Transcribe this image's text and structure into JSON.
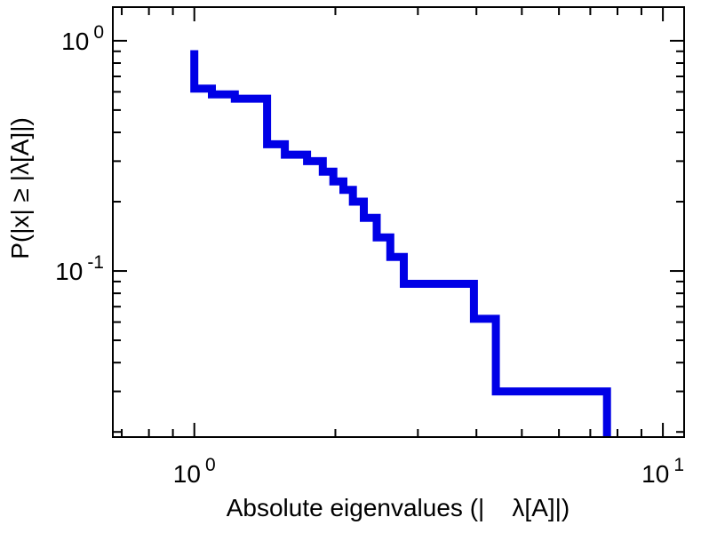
{
  "chart_data": {
    "type": "line",
    "subtype": "empirical-ccdf-step",
    "title": "",
    "xlabel": "Absolute eigenvalues (|    λ[A]|)",
    "ylabel": "P(|x| ≥ |λ[A]|)",
    "x_scale": "log",
    "y_scale": "log",
    "xlim": [
      0.67,
      11.1
    ],
    "ylim": [
      0.019,
      1.4
    ],
    "grid": false,
    "legend": false,
    "line_color": "#0000e6",
    "line_width": 9,
    "frame_color": "#000000",
    "x_major_ticks": [
      {
        "value": 1,
        "base": "10",
        "exp": "0"
      },
      {
        "value": 10,
        "base": "10",
        "exp": "1"
      }
    ],
    "y_major_ticks": [
      {
        "value": 1,
        "base": "10",
        "exp": "0"
      },
      {
        "value": 0.1,
        "base": "10",
        "exp": "-1"
      }
    ],
    "points": [
      [
        1.0,
        0.91
      ],
      [
        1.0,
        0.62
      ],
      [
        1.09,
        0.62
      ],
      [
        1.09,
        0.585
      ],
      [
        1.22,
        0.585
      ],
      [
        1.22,
        0.56
      ],
      [
        1.43,
        0.56
      ],
      [
        1.43,
        0.355
      ],
      [
        1.56,
        0.355
      ],
      [
        1.56,
        0.32
      ],
      [
        1.74,
        0.32
      ],
      [
        1.74,
        0.3
      ],
      [
        1.88,
        0.3
      ],
      [
        1.88,
        0.27
      ],
      [
        1.98,
        0.27
      ],
      [
        1.98,
        0.245
      ],
      [
        2.08,
        0.245
      ],
      [
        2.08,
        0.225
      ],
      [
        2.18,
        0.225
      ],
      [
        2.18,
        0.2
      ],
      [
        2.3,
        0.2
      ],
      [
        2.3,
        0.17
      ],
      [
        2.45,
        0.17
      ],
      [
        2.45,
        0.14
      ],
      [
        2.62,
        0.14
      ],
      [
        2.62,
        0.115
      ],
      [
        2.8,
        0.115
      ],
      [
        2.8,
        0.088
      ],
      [
        3.95,
        0.088
      ],
      [
        3.95,
        0.062
      ],
      [
        4.4,
        0.062
      ],
      [
        4.4,
        0.03
      ],
      [
        7.6,
        0.03
      ],
      [
        7.6,
        0.015
      ]
    ]
  }
}
